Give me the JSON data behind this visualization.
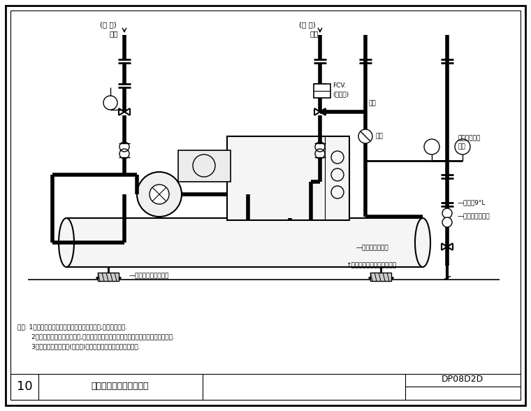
{
  "title": "冰水主機水管安裝示意圖",
  "drawing_number": "DP08D2D",
  "sheet_number": "10",
  "bg_color": "#ffffff",
  "line_color": "#000000",
  "text_color": "#000000",
  "note1": "說明: 1、本冊冰水主機之外型為離心式冰水主機,其外型供參考.",
  "note2": "       2、任何型式和類之冰水主機,其主要水管均包含冰水進、出水管及冷卻水進、出水管.",
  "note3": "       3、在冰水及冷卻水管(共四處)均設置支撐架含橡皮墊避震裝置.",
  "label_inlet": "(冰 水)\n進水",
  "label_outlet": "(冰 水)\n出水",
  "label_fcv": "FCV.",
  "label_cold": "(冷卻水)",
  "label_outwater": "出水",
  "label_butterfly": "蝶閥",
  "label_pressure": "壓力錶附考克",
  "label_pressure2": "進水",
  "label_temp": "—溫度計9°L",
  "label_doubleball": "—雙球式防震水管",
  "label_gate": "—閘門閥（考克）",
  "label_drain": "↑排水至排水溝或地板落水頭",
  "label_chiller_model": "—磁壓錶附冰水機型號"
}
